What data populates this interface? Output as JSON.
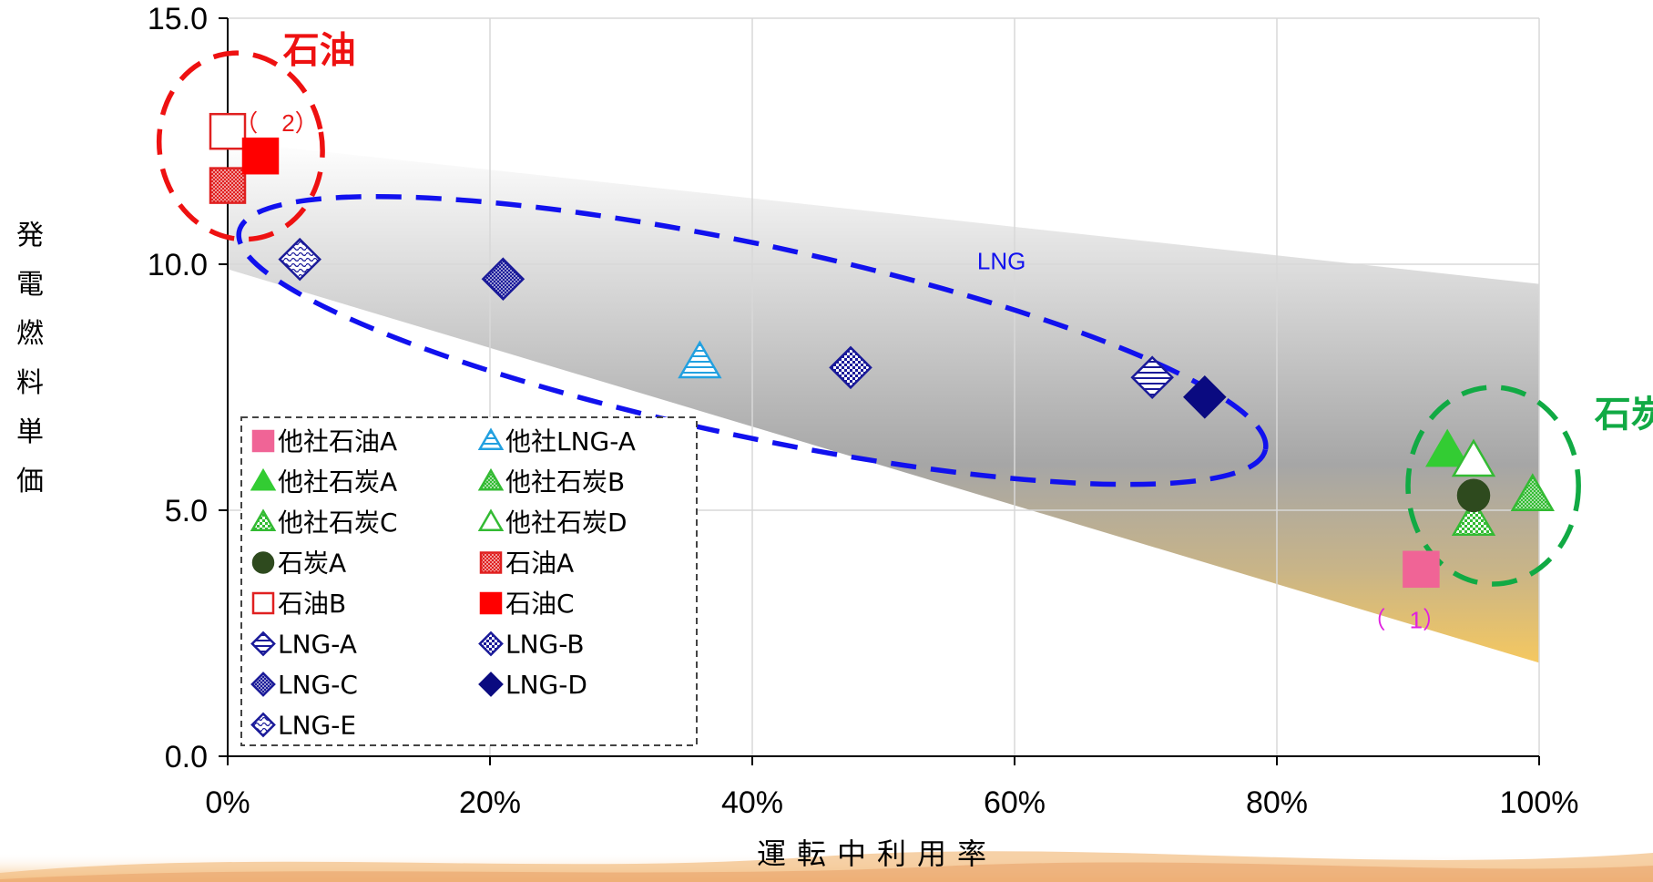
{
  "chart_data": {
    "type": "scatter",
    "xlabel": "運転中利用率",
    "ylabel": "発電燃料単価",
    "xlim": [
      0,
      100
    ],
    "ylim": [
      0,
      15
    ],
    "xticks": [
      "0%",
      "20%",
      "40%",
      "60%",
      "80%",
      "100%"
    ],
    "yticks": [
      "0.0",
      "5.0",
      "10.0",
      "15.0"
    ],
    "grid": true,
    "legend_position": "bottom-left",
    "series": [
      {
        "name": "他社石油A",
        "marker": "square",
        "fill": "solid",
        "color": "#f06496",
        "x": 91,
        "y": 3.8
      },
      {
        "name": "他社LNG-A",
        "marker": "triangle",
        "fill": "hlines",
        "color": "#22a0e0",
        "x": 36,
        "y": 8.0
      },
      {
        "name": "他社石炭A",
        "marker": "triangle",
        "fill": "solid",
        "color": "#33cc33",
        "x": 93,
        "y": 6.2
      },
      {
        "name": "他社石炭B",
        "marker": "triangle",
        "fill": "dense",
        "color": "#33bb33",
        "x": 99.5,
        "y": 5.3
      },
      {
        "name": "他社石炭C",
        "marker": "triangle",
        "fill": "checker",
        "color": "#33bb33",
        "x": 95,
        "y": 4.8
      },
      {
        "name": "他社石炭D",
        "marker": "triangle",
        "fill": "hollow",
        "color": "#33bb33",
        "x": 95,
        "y": 6.0
      },
      {
        "name": "石炭A",
        "marker": "circle",
        "fill": "solid",
        "color": "#2e4a1e",
        "x": 95,
        "y": 5.3
      },
      {
        "name": "石油A",
        "marker": "square",
        "fill": "dense",
        "color": "#e02020",
        "x": 0,
        "y": 11.6
      },
      {
        "name": "石油B",
        "marker": "square",
        "fill": "hollow",
        "color": "#e02020",
        "x": 0,
        "y": 12.7
      },
      {
        "name": "石油C",
        "marker": "square",
        "fill": "solid",
        "color": "#ff0000",
        "x": 2.5,
        "y": 12.2
      },
      {
        "name": "LNG-A",
        "marker": "diamond",
        "fill": "hlines",
        "color": "#1a1a99",
        "x": 70.5,
        "y": 7.7
      },
      {
        "name": "LNG-B",
        "marker": "diamond",
        "fill": "checker",
        "color": "#1a1a99",
        "x": 47.5,
        "y": 7.9
      },
      {
        "name": "LNG-C",
        "marker": "diamond",
        "fill": "dense",
        "color": "#1a1a99",
        "x": 21,
        "y": 9.7
      },
      {
        "name": "LNG-D",
        "marker": "diamond",
        "fill": "solid",
        "color": "#0a0a80",
        "x": 74.5,
        "y": 7.3
      },
      {
        "name": "LNG-E",
        "marker": "diamond",
        "fill": "wave",
        "color": "#1a1a99",
        "x": 5.5,
        "y": 10.1
      }
    ],
    "annotations": [
      {
        "text": "石油",
        "color": "#ee1111",
        "x": 7,
        "y": 14.1,
        "type": "group"
      },
      {
        "text": "LNG",
        "color": "#1111ee",
        "x": 59,
        "y": 9.9,
        "type": "group-plain"
      },
      {
        "text": "石炭",
        "color": "#11aa44",
        "x": 107,
        "y": 6.7,
        "type": "group"
      },
      {
        "text": "（　2）",
        "color": "#e81a1a",
        "x": 0.5,
        "y": 12.7,
        "type": "note"
      },
      {
        "text": "（　1）",
        "color": "#e020e0",
        "x": 86.5,
        "y": 2.6,
        "type": "note"
      }
    ],
    "ellipses": [
      {
        "label": "石油",
        "color": "#ee1111",
        "cx": 1,
        "cy": 12.4,
        "rx": 6.2,
        "ry": 1.9,
        "rotate": -10
      },
      {
        "label": "LNG",
        "color": "#1111ee",
        "cx": 40,
        "cy": 8.45,
        "rx": 40,
        "ry": 1.95,
        "rotate": 12
      },
      {
        "label": "石炭",
        "color": "#11aa44",
        "cx": 96.5,
        "cy": 5.5,
        "rx": 6.5,
        "ry": 2.0,
        "rotate": 0
      }
    ],
    "band": {
      "top": [
        [
          0,
          12.5
        ],
        [
          100,
          9.6
        ]
      ],
      "bottom": [
        [
          0,
          9.9
        ],
        [
          100,
          1.9
        ]
      ]
    }
  }
}
